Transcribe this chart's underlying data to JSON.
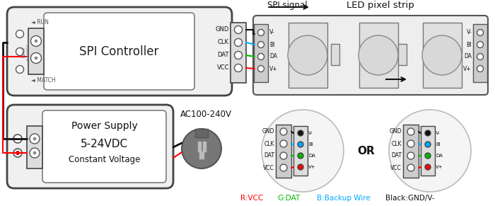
{
  "bg_color": "#ffffff",
  "spi_controller_label": "SPI Controller",
  "power_supply_label1": "Power Supply",
  "power_supply_label2": "5-24VDC",
  "power_supply_label3": "Constant Voltage",
  "ac_label": "AC100-240V",
  "spi_signal_label": "SPI signal",
  "led_strip_label": "LED pixel strip",
  "or_label": "OR",
  "legend_r": "R:VCC",
  "legend_g": "G:DAT",
  "legend_b": "B:Backup Wire",
  "legend_bk": "Black:GND/V-",
  "color_red": "#ff0000",
  "color_green": "#00bb00",
  "color_blue": "#00aaff",
  "color_black": "#111111",
  "color_gray_light": "#e8e8e8",
  "color_gray_mid": "#cccccc",
  "color_gray_dark": "#555555",
  "color_border": "#444444",
  "wire_labels": [
    "GND",
    "CLK",
    "DAT",
    "VCC"
  ],
  "conn_labels": [
    "V-",
    "BI",
    "DA",
    "V+"
  ],
  "run_label": "◄ RUN",
  "match_label": "◄ MATCH",
  "input_label": "INPUT\n5-24VDC"
}
